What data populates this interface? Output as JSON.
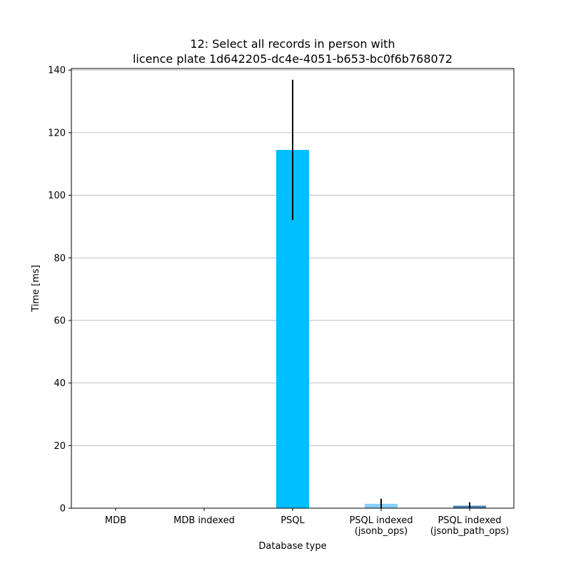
{
  "chart_data": {
    "type": "bar",
    "title_lines": [
      "12: Select all records in person with",
      "licence plate 1d642205-dc4e-4051-b653-bc0f6b768072"
    ],
    "xlabel": "Database type",
    "ylabel": "Time [ms]",
    "ylim": [
      0,
      140.5
    ],
    "yticks": [
      0,
      20,
      40,
      60,
      80,
      100,
      120,
      140
    ],
    "grid": "y",
    "categories": [
      [
        "MDB"
      ],
      [
        "MDB indexed"
      ],
      [
        "PSQL"
      ],
      [
        "PSQL indexed",
        "(jsonb_ops)"
      ],
      [
        "PSQL indexed",
        "(jsonb_path_ops)"
      ]
    ],
    "values": [
      0.05,
      0.05,
      114.5,
      1.4,
      0.8
    ],
    "errors": [
      0.02,
      0.02,
      22.4,
      1.6,
      1.1
    ],
    "colors": [
      "#00bfff",
      "#00bfff",
      "#00bfff",
      "#87cefa",
      "#4682b4"
    ]
  }
}
